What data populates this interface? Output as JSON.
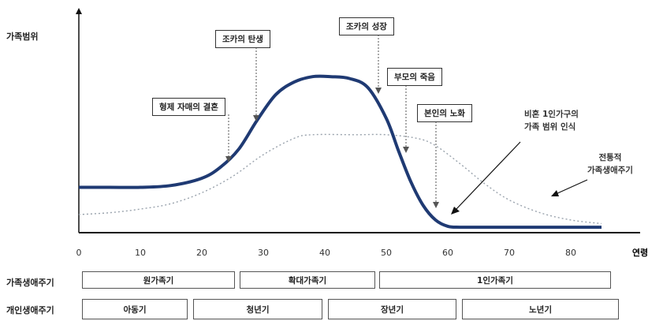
{
  "chart_data": {
    "type": "line",
    "ylabel": "가족범위",
    "xlabel": "연령",
    "x_ticks": [
      0,
      10,
      20,
      30,
      40,
      50,
      60,
      70,
      80
    ],
    "xlim": [
      0,
      85
    ],
    "series": [
      {
        "x": [
          0,
          5,
          10,
          15,
          20,
          23,
          26,
          29,
          32,
          35,
          38,
          41,
          44,
          47,
          50,
          52,
          54,
          56,
          58,
          60,
          62,
          66,
          70,
          75,
          80,
          85
        ],
        "y": [
          0.25,
          0.25,
          0.25,
          0.26,
          0.3,
          0.36,
          0.46,
          0.62,
          0.76,
          0.83,
          0.86,
          0.86,
          0.85,
          0.8,
          0.63,
          0.45,
          0.28,
          0.15,
          0.07,
          0.035,
          0.03,
          0.03,
          0.03,
          0.03,
          0.03,
          0.03
        ]
      },
      {
        "name": "전통적 가족생애주기",
        "x": [
          0,
          5,
          10,
          15,
          20,
          25,
          30,
          35,
          38,
          45,
          50,
          55,
          58,
          62,
          66,
          70,
          75,
          80,
          85
        ],
        "y": [
          0.1,
          0.11,
          0.13,
          0.16,
          0.22,
          0.31,
          0.43,
          0.52,
          0.54,
          0.54,
          0.54,
          0.52,
          0.48,
          0.38,
          0.27,
          0.18,
          0.11,
          0.07,
          0.05
        ]
      }
    ],
    "annotations": [
      {
        "text": "형제 자매의 결혼",
        "x": 23
      },
      {
        "text": "조카의 탄생",
        "x": 28
      },
      {
        "text": "조카의 성장",
        "x": 47
      },
      {
        "text": "부모의 죽음",
        "x": 51
      },
      {
        "text": "본인의 노화",
        "x": 57
      },
      {
        "text": "비혼 1인가구의 가족 범위 인식"
      },
      {
        "text": "전통적 가족생애주기"
      }
    ]
  },
  "callouts": {
    "sibling_marriage": "형제 자매의 결혼",
    "nephew_birth": "조카의 탄생",
    "nephew_growth": "조카의 성장",
    "parent_death": "부모의 죽음",
    "self_aging": "본인의 노화"
  },
  "notes": {
    "single_line1": "비혼 1인가구의",
    "single_line2": "가족 범위 인식",
    "traditional_line1": "전통적",
    "traditional_line2": "가족생애주기"
  },
  "rows": {
    "family_label": "가족생애주기",
    "family_stages": [
      "원가족기",
      "확대가족기",
      "1인가족기"
    ],
    "personal_label": "개인생애주기",
    "personal_stages": [
      "아동기",
      "청년기",
      "장년기",
      "노년기"
    ]
  },
  "colors": {
    "main_curve": "#1f3a73",
    "dotted_curve": "#9aa3ad",
    "axis": "#111111"
  }
}
